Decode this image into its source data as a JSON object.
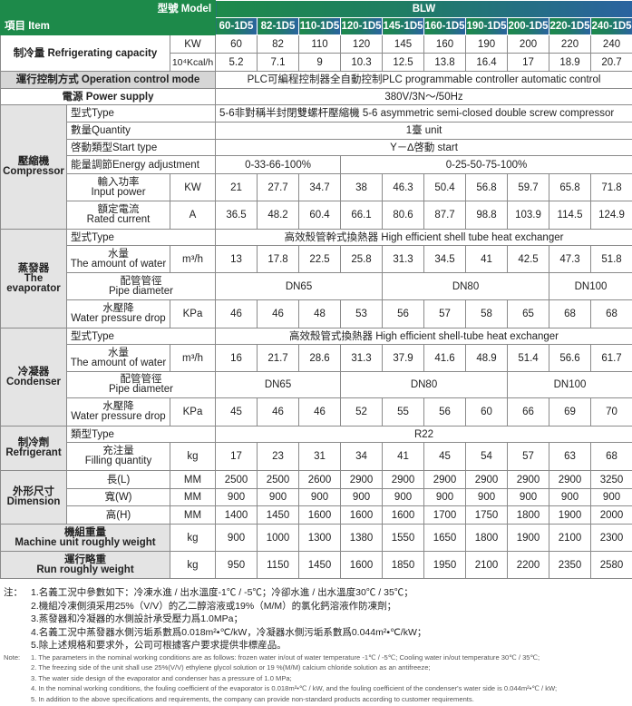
{
  "header": {
    "model_label": "型號 Model",
    "item_label": "項目 Item",
    "series": "BLW",
    "models": [
      "60-1D5",
      "82-1D5",
      "110-1D5",
      "120-1D5",
      "145-1D5",
      "160-1D5",
      "190-1D5",
      "200-1D5",
      "220-1D5",
      "240-1D5"
    ]
  },
  "capacity": {
    "label": "制冷量 Refrigerating capacity",
    "unit_kw": "KW",
    "unit_kcal": "10⁴Kcal/h",
    "kw": [
      "60",
      "82",
      "110",
      "120",
      "145",
      "160",
      "190",
      "200",
      "220",
      "240"
    ],
    "kcal": [
      "5.2",
      "7.1",
      "9",
      "10.3",
      "12.5",
      "13.8",
      "16.4",
      "17",
      "18.9",
      "20.7"
    ]
  },
  "control": {
    "label": "運行控制方式 Operation control mode",
    "value": "PLC可編程控制器全自動控制PLC programmable controller automatic control"
  },
  "power": {
    "label": "電源 Power supply",
    "value": "380V/3N～/50Hz"
  },
  "compressor": {
    "label_cn": "壓縮機",
    "label_en": "Compressor",
    "type_label": "型式Type",
    "type_value": "5-6非對稱半封閉雙螺杆壓縮機 5-6 asymmetric semi-closed double screw compressor",
    "qty_label": "數量Quantity",
    "qty_value": "1臺 unit",
    "start_label": "啓動類型Start type",
    "start_value": "Y－∆啓動 start",
    "energy_label": "能量調節Energy adjustment",
    "energy_a": "0-33-66-100%",
    "energy_b": "0-25-50-75-100%",
    "input_cn": "輸入功率",
    "input_en": "Input power",
    "input_unit": "KW",
    "input": [
      "21",
      "27.7",
      "34.7",
      "38",
      "46.3",
      "50.4",
      "56.8",
      "59.7",
      "65.8",
      "71.8"
    ],
    "current_cn": "額定電流",
    "current_en": "Rated current",
    "current_unit": "A",
    "current": [
      "36.5",
      "48.2",
      "60.4",
      "66.1",
      "80.6",
      "87.7",
      "98.8",
      "103.9",
      "114.5",
      "124.9"
    ]
  },
  "evaporator": {
    "label_cn": "蒸發器",
    "label_en1": "The",
    "label_en2": "evaporator",
    "type_label": "型式Type",
    "type_value": "高效殼管幹式換熱器  High efficient shell tube heat exchanger",
    "water_cn": "水量",
    "water_en": "The amount of water",
    "water_unit": "m³/h",
    "water": [
      "13",
      "17.8",
      "22.5",
      "25.8",
      "31.3",
      "34.5",
      "41",
      "42.5",
      "47.3",
      "51.8"
    ],
    "pipe_cn": "配管管徑",
    "pipe_en": "Pipe diameter",
    "pipe": [
      "DN65",
      "DN80",
      "DN100"
    ],
    "drop_cn": "水壓降",
    "drop_en": "Water pressure drop",
    "drop_unit": "KPa",
    "drop": [
      "46",
      "46",
      "48",
      "53",
      "56",
      "57",
      "58",
      "65",
      "68",
      "68"
    ]
  },
  "condenser": {
    "label_cn": "冷凝器",
    "label_en": "Condenser",
    "type_label": "型式Type",
    "type_value": "高效殼管式換熱器 High efficient shell-tube heat exchanger",
    "water_cn": "水量",
    "water_en": "The amount of water",
    "water_unit": "m³/h",
    "water": [
      "16",
      "21.7",
      "28.6",
      "31.3",
      "37.9",
      "41.6",
      "48.9",
      "51.4",
      "56.6",
      "61.7"
    ],
    "pipe_cn": "配管管徑",
    "pipe_en": "Pipe diameter",
    "pipe": [
      "DN65",
      "DN80",
      "DN100"
    ],
    "drop_cn": "水壓降",
    "drop_en": "Water pressure drop",
    "drop_unit": "KPa",
    "drop": [
      "45",
      "46",
      "46",
      "52",
      "55",
      "56",
      "60",
      "66",
      "69",
      "70"
    ]
  },
  "refrigerant": {
    "label_cn": "制冷劑",
    "label_en": "Refrigerant",
    "type_label": "類型Type",
    "type_value": "R22",
    "fill_cn": "充注量",
    "fill_en": "Filling quantity",
    "fill_unit": "kg",
    "fill": [
      "17",
      "23",
      "31",
      "34",
      "41",
      "45",
      "54",
      "57",
      "63",
      "68"
    ]
  },
  "dimension": {
    "label_cn": "外形尺寸",
    "label_en": "Dimension",
    "unit": "MM",
    "l_label": "長(L)",
    "l": [
      "2500",
      "2500",
      "2600",
      "2900",
      "2900",
      "2900",
      "2900",
      "2900",
      "2900",
      "3250"
    ],
    "w_label": "寬(W)",
    "w": [
      "900",
      "900",
      "900",
      "900",
      "900",
      "900",
      "900",
      "900",
      "900",
      "900"
    ],
    "h_label": "高(H)",
    "h": [
      "1400",
      "1450",
      "1600",
      "1600",
      "1600",
      "1700",
      "1750",
      "1800",
      "1900",
      "2000"
    ]
  },
  "machine_weight": {
    "label_cn": "機組重量",
    "label_en": "Machine unit roughly weight",
    "unit": "kg",
    "values": [
      "900",
      "1000",
      "1300",
      "1380",
      "1550",
      "1650",
      "1800",
      "1900",
      "2100",
      "2300"
    ]
  },
  "run_weight": {
    "label_cn": "運行略重",
    "label_en": "Run roughly weight",
    "unit": "kg",
    "values": [
      "950",
      "1150",
      "1450",
      "1600",
      "1850",
      "1950",
      "2100",
      "2200",
      "2350",
      "2580"
    ]
  },
  "notes": {
    "cn_label": "注：",
    "cn": [
      "1.名義工況中參數如下：冷凍水進 / 出水溫度-1℃ / -5℃；冷卻水進 / 出水溫度30℃ / 35℃；",
      "2.機組冷凍側須采用25%（V/V）的乙二醇溶液或19%（M/M）的氯化鈣溶液作防凍劑；",
      "3.蒸發器和冷凝器的水側設計承受壓力爲1.0MPa；",
      "4.名義工況中蒸發器水側污垢系數爲0.018m²•℃/kW，冷凝器水側污垢系數爲0.044m²•℃/kW；",
      "5.除上述規格和要求外，公司可根據客户要求提供非標産品。"
    ],
    "en_label": "Note:",
    "en": [
      "1. The parameters in the nominal working conditions are as follows: frozen water in/out of water temperature -1℃ / -5℃; Cooling water in/out temperature 30℃ / 35℃;",
      "2. The freezing side of the unit shall use 25%(V/V) ethylene glycol solution or 19 %(M/M) calcium chloride solution as an antifreeze;",
      "3. The water side design of the evaporator and condenser has a pressure of 1.0 MPa;",
      "4. In the nominal working conditions, the fouling coefficient of the evaporator is 0.018m²•℃ / kW, and the fouling coefficient of the condenser's water side is 0.044m²•℃ / kW;",
      "5. In addition to the above specifications and requirements, the company can provide non-standard products according to customer requirements."
    ]
  }
}
